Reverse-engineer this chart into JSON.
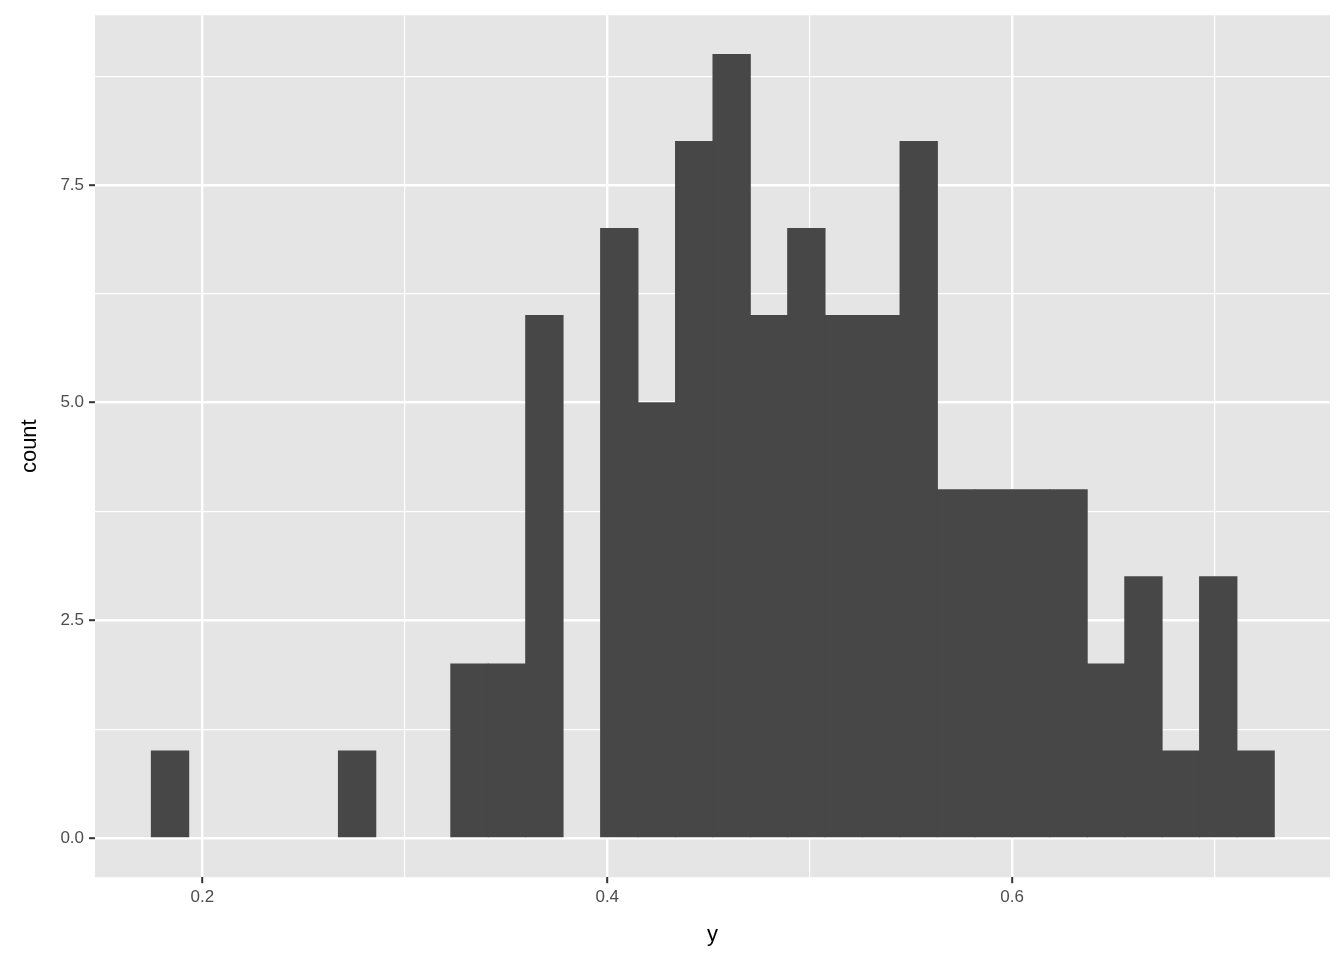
{
  "chart_data": {
    "type": "histogram",
    "xlabel": "y",
    "ylabel": "count",
    "bins": [
      0.1748,
      0.1933,
      0.2118,
      0.2303,
      0.2487,
      0.2672,
      0.2857,
      0.3042,
      0.3227,
      0.3412,
      0.3597,
      0.3782,
      0.3967,
      0.4152,
      0.4337,
      0.4522,
      0.4707,
      0.4891,
      0.5076,
      0.5261,
      0.5446,
      0.5631,
      0.5816,
      0.6001,
      0.6186,
      0.6371,
      0.6556,
      0.6741,
      0.6926,
      0.711,
      0.7295
    ],
    "values": [
      1,
      0,
      0,
      0,
      0,
      1,
      0,
      0,
      2,
      2,
      6,
      0,
      7,
      5,
      8,
      9,
      6,
      7,
      6,
      6,
      8,
      4,
      4,
      4,
      4,
      2,
      3,
      1,
      3,
      1
    ],
    "color": "#474747",
    "xlim": [
      0.147,
      0.757
    ],
    "ylim": [
      -0.45,
      9.45
    ],
    "xticks": [
      0.2,
      {
        "value": 0.3,
        "label": null
      },
      0.4,
      {
        "value": 0.5,
        "label": null
      },
      0.6,
      {
        "value": 0.7,
        "label": null
      }
    ],
    "yticks": [
      {
        "value": 0,
        "label": "0.0"
      },
      {
        "value": 1.25,
        "label": null
      },
      2.5,
      {
        "value": 3.75,
        "label": null
      },
      {
        "value": 5,
        "label": "5.0"
      },
      {
        "value": 6.25,
        "label": null
      },
      7.5,
      {
        "value": 8.75,
        "label": null
      }
    ],
    "grid": true
  }
}
